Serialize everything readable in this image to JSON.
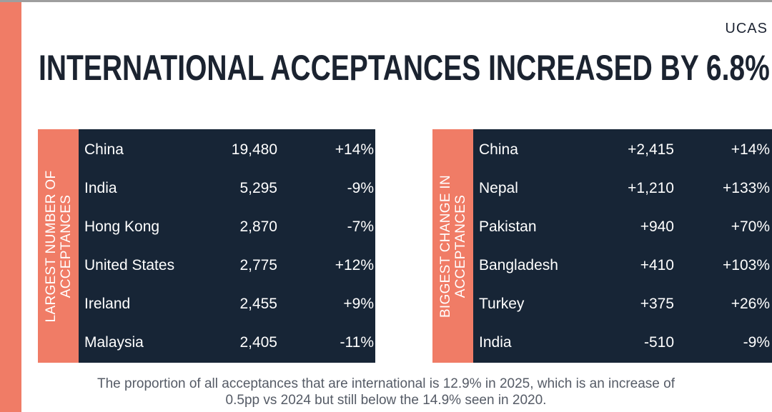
{
  "brand": {
    "logo": "UCAS"
  },
  "title": "INTERNATIONAL ACCEPTANCES INCREASED BY 6.8%",
  "colors": {
    "accent": "#f07c66",
    "table_bg": "#172536",
    "title": "#1b2330"
  },
  "largest": {
    "label": "LARGEST NUMBER OF\nACCEPTANCES",
    "rows": [
      {
        "country": "China",
        "value": "19,480",
        "change": "+14%"
      },
      {
        "country": "India",
        "value": "5,295",
        "change": "-9%"
      },
      {
        "country": "Hong Kong",
        "value": "2,870",
        "change": "-7%"
      },
      {
        "country": "United States",
        "value": "2,775",
        "change": "+12%"
      },
      {
        "country": "Ireland",
        "value": "2,455",
        "change": "+9%"
      },
      {
        "country": "Malaysia",
        "value": "2,405",
        "change": "-11%"
      }
    ]
  },
  "biggest": {
    "label": "BIGGEST CHANGE IN\nACCEPTANCES",
    "rows": [
      {
        "country": "China",
        "value": "+2,415",
        "change": "+14%"
      },
      {
        "country": "Nepal",
        "value": "+1,210",
        "change": "+133%"
      },
      {
        "country": "Pakistan",
        "value": "+940",
        "change": "+70%"
      },
      {
        "country": "Bangladesh",
        "value": "+410",
        "change": "+103%"
      },
      {
        "country": "Turkey",
        "value": "+375",
        "change": "+26%"
      },
      {
        "country": "India",
        "value": "-510",
        "change": "-9%"
      }
    ]
  },
  "footnote": "The proportion of all acceptances that are international is 12.9% in 2025, which is an increase of 0.5pp vs 2024 but still below the 14.9% seen in 2020."
}
